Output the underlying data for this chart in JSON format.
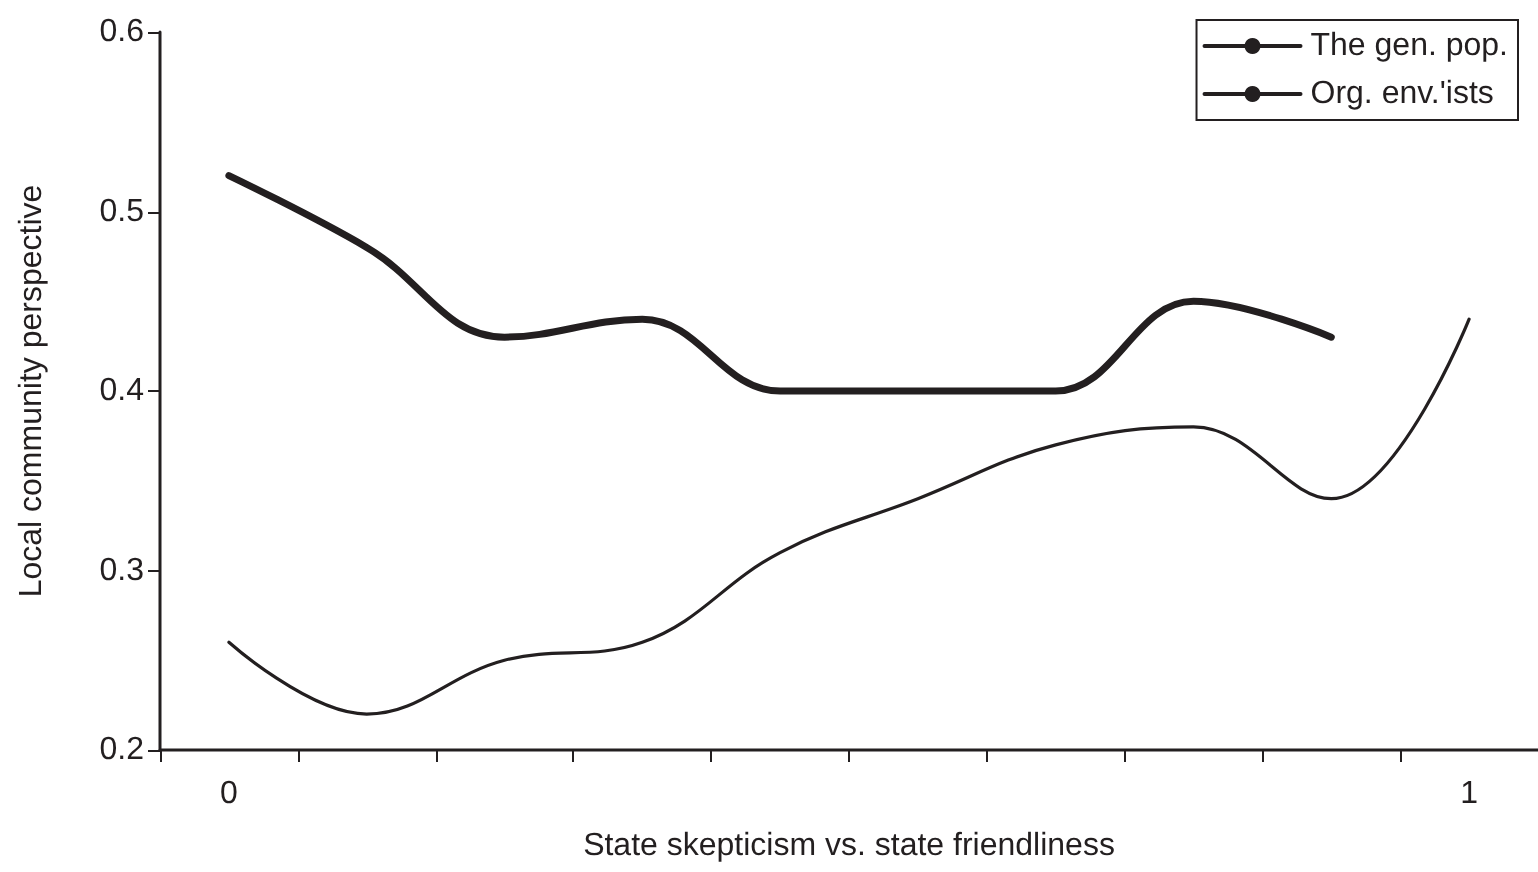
{
  "chart_data": {
    "type": "line",
    "xlabel": "State skepticism vs. state friendliness",
    "ylabel": "Local community perspective",
    "categories": [
      "0",
      null,
      null,
      null,
      null,
      null,
      null,
      null,
      null,
      "1"
    ],
    "series": [
      {
        "name": "The gen. pop.",
        "color": "#231f20",
        "values": [
          0.52,
          0.48,
          0.43,
          0.44,
          0.4,
          0.4,
          0.4,
          0.45,
          0.43,
          null
        ]
      },
      {
        "name": "Org. env.'ists",
        "color": "#231f20",
        "values": [
          0.26,
          0.22,
          0.25,
          0.26,
          0.31,
          0.34,
          0.37,
          0.38,
          0.34,
          0.44
        ]
      }
    ],
    "ylim": [
      0.2,
      0.6
    ],
    "yticks": [
      0.2,
      0.3,
      0.4,
      0.5,
      0.6
    ],
    "grid": false,
    "legend": "top right",
    "marker": "none",
    "line_style": "solid"
  }
}
